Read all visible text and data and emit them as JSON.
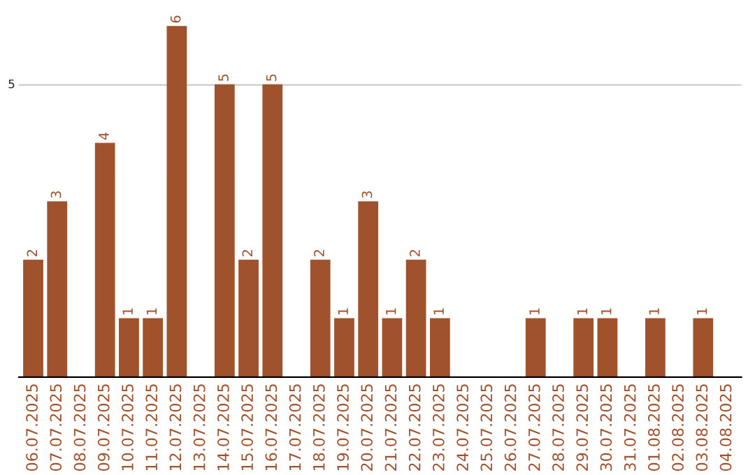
{
  "chart_data": {
    "type": "bar",
    "categories": [
      "06.07.2025",
      "07.07.2025",
      "08.07.2025",
      "09.07.2025",
      "10.07.2025",
      "11.07.2025",
      "12.07.2025",
      "13.07.2025",
      "14.07.2025",
      "15.07.2025",
      "16.07.2025",
      "17.07.2025",
      "18.07.2025",
      "19.07.2025",
      "20.07.2025",
      "21.07.2025",
      "22.07.2025",
      "23.07.2025",
      "24.07.2025",
      "25.07.2025",
      "26.07.2025",
      "27.07.2025",
      "28.07.2025",
      "29.07.2025",
      "30.07.2025",
      "31.07.2025",
      "01.08.2025",
      "02.08.2025",
      "03.08.2025",
      "04.08.2025"
    ],
    "values": [
      2,
      3,
      0,
      4,
      1,
      1,
      6,
      0,
      5,
      2,
      5,
      0,
      2,
      1,
      3,
      1,
      2,
      1,
      0,
      0,
      0,
      1,
      0,
      1,
      1,
      0,
      1,
      0,
      1,
      0
    ],
    "value_labels": [
      "2",
      "3",
      null,
      "4",
      "1",
      "1",
      "6",
      null,
      "5",
      "2",
      "5",
      null,
      "2",
      "1",
      "3",
      "1",
      "2",
      "1",
      null,
      null,
      null,
      "1",
      null,
      "1",
      "1",
      null,
      "1",
      null,
      "1",
      null
    ],
    "color": "#a0522d",
    "ref_lines": [
      {
        "axis": "y",
        "value": 5,
        "label": "5",
        "color": "#cccccc"
      }
    ],
    "legend": false
  }
}
